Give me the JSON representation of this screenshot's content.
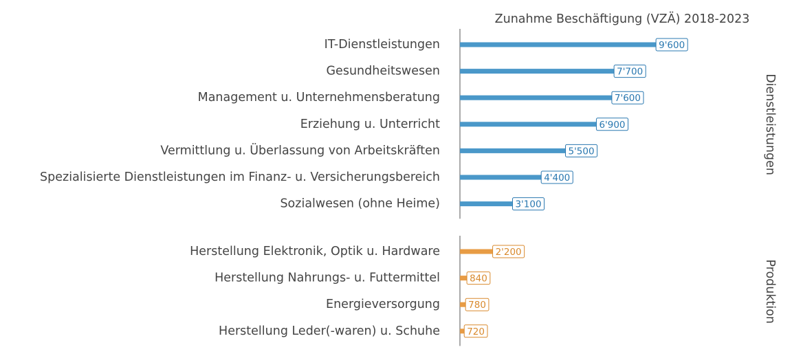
{
  "title": "Zunahme Beschäftigung (VZÄ) 2018-2023",
  "chart_data": [
    {
      "type": "bar",
      "label": "Dienstleistungen",
      "categories": [
        "IT-Dienstleistungen",
        "Gesundheitswesen",
        "Management u. Unternehmensberatung",
        "Erziehung u. Unterricht",
        "Vermittlung u. Überlassung von Arbeitskräften",
        "Spezialisierte Dienstleistungen im Finanz- u. Versicherungsbereich",
        "Sozialwesen (ohne Heime)"
      ],
      "values": [
        9600,
        7700,
        7600,
        6900,
        5500,
        4400,
        3100
      ],
      "value_labels": [
        "9'600",
        "7'700",
        "7'600",
        "6'900",
        "5'500",
        "4'400",
        "3'100"
      ],
      "color": "#4a98c9",
      "label_color": "#2a78b0",
      "xlim": [
        0,
        10000
      ]
    },
    {
      "type": "bar",
      "label": "Produktion",
      "categories": [
        "Herstellung Elektronik, Optik u. Hardware",
        "Herstellung Nahrungs- u. Futtermittel",
        "Energieversorgung",
        "Herstellung Leder(-waren) u. Schuhe"
      ],
      "values": [
        2200,
        840,
        780,
        720
      ],
      "value_labels": [
        "2'200",
        "840",
        "780",
        "720"
      ],
      "color": "#e89c45",
      "label_color": "#d98a2e",
      "xlim": [
        0,
        10000
      ]
    }
  ]
}
